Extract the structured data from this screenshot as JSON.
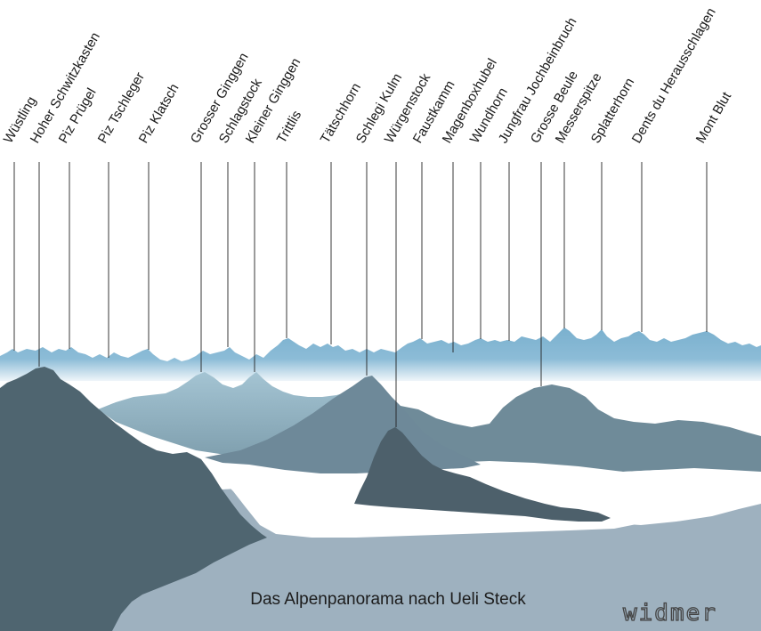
{
  "peaks": [
    {
      "name": "Wüstling"
    },
    {
      "name": "Hoher Schwitzkasten"
    },
    {
      "name": "Piz Prügel"
    },
    {
      "name": "Piz Tschleger"
    },
    {
      "name": "Piz Klatsch"
    },
    {
      "name": "Grosser Ginggen"
    },
    {
      "name": "Schlagstock"
    },
    {
      "name": "Kleiner Ginggen"
    },
    {
      "name": "Trittlis"
    },
    {
      "name": "Tätschhorn"
    },
    {
      "name": "Schlegi Kulm"
    },
    {
      "name": "Würgenstock"
    },
    {
      "name": "Faustkamm"
    },
    {
      "name": "Magenboxhubel"
    },
    {
      "name": "Wundhorn"
    },
    {
      "name": "Jungfrau Jochbeinbruch"
    },
    {
      "name": "Grosse Beule"
    },
    {
      "name": "Messerspitze"
    },
    {
      "name": "Splatterhorn"
    },
    {
      "name": "Dents du Herausschlagen"
    },
    {
      "name": "Mont Blut"
    }
  ],
  "caption": "Das Alpenpanorama nach Ueli Steck",
  "signature": "widmer",
  "colors": {
    "far_range": "#7fb2cf",
    "haze": "#ffffff",
    "mid_left_hills": "#8fb4c6",
    "mid_right_hills": "#6f8b99",
    "central_peak": "#6e8999",
    "lake_shore": "#9fb2c0",
    "foreground_island": "#4d606b",
    "left_cliff": "#4f6570",
    "water": "#ffffff"
  }
}
